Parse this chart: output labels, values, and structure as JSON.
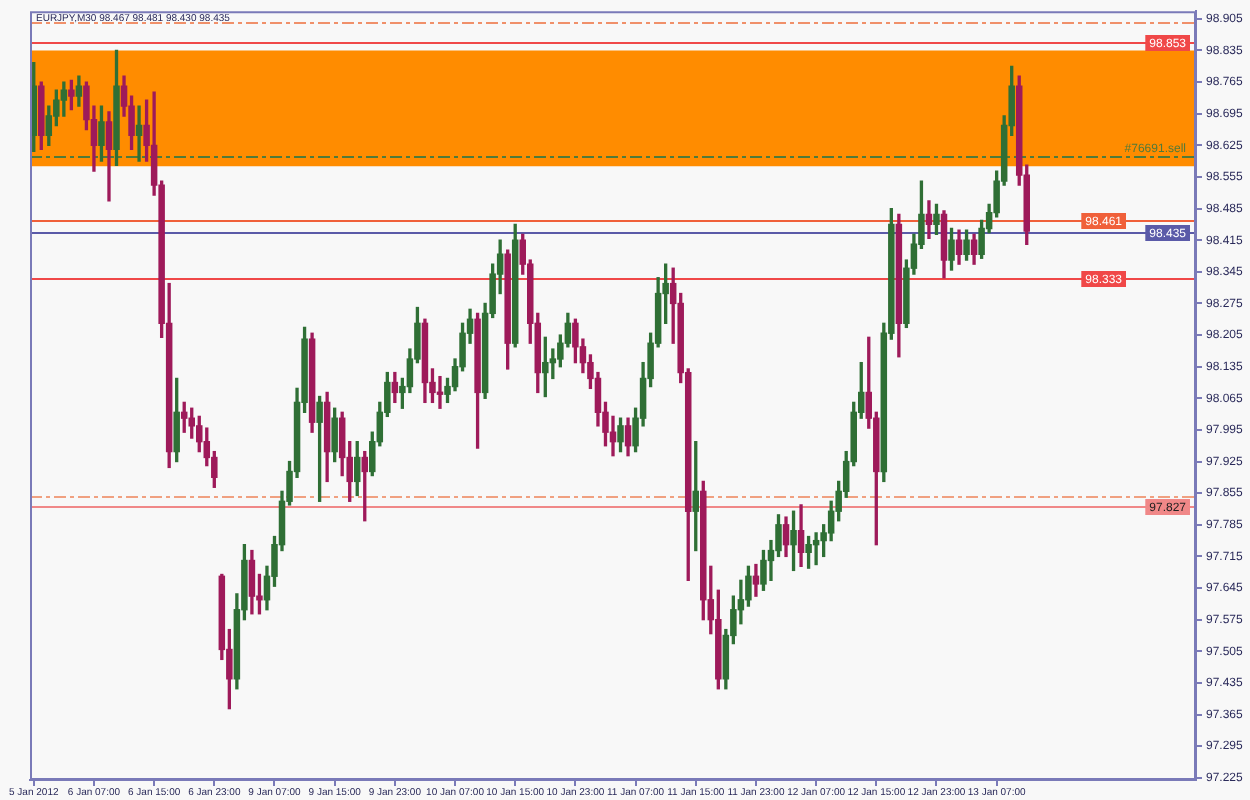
{
  "chart_data": {
    "type": "candlestick",
    "title": "EURJPY,M30 98.467 98.481 98.430 98.435",
    "categories": [
      "5 Jan 2012",
      null,
      null,
      null,
      null,
      null,
      null,
      null,
      "6 Jan 07:00",
      null,
      null,
      null,
      null,
      null,
      null,
      null,
      "6 Jan 15:00",
      null,
      null,
      null,
      null,
      null,
      null,
      null,
      "6 Jan 23:00",
      null,
      null,
      null,
      null,
      null,
      null,
      null,
      "9 Jan 07:00",
      null,
      null,
      null,
      null,
      null,
      null,
      null,
      "9 Jan 15:00",
      null,
      null,
      null,
      null,
      null,
      null,
      null,
      "9 Jan 23:00",
      null,
      null,
      null,
      null,
      null,
      null,
      null,
      "10 Jan 07:00",
      null,
      null,
      null,
      null,
      null,
      null,
      null,
      "10 Jan 15:00",
      null,
      null,
      null,
      null,
      null,
      null,
      null,
      "10 Jan 23:00",
      null,
      null,
      null,
      null,
      null,
      null,
      null,
      "11 Jan 07:00",
      null,
      null,
      null,
      null,
      null,
      null,
      null,
      "11 Jan 15:00",
      null,
      null,
      null,
      null,
      null,
      null,
      null,
      "11 Jan 23:00",
      null,
      null,
      null,
      null,
      null,
      null,
      null,
      "12 Jan 07:00",
      null,
      null,
      null,
      null,
      null,
      null,
      null,
      "12 Jan 15:00",
      null,
      null,
      null,
      null,
      null,
      null,
      null,
      "12 Jan 23:00",
      null,
      null,
      null,
      null,
      null,
      null,
      null,
      "13 Jan 07:00",
      null,
      null,
      null,
      null,
      null,
      null,
      null,
      null,
      null,
      null,
      null,
      null,
      null,
      null,
      null,
      null,
      null,
      null,
      null,
      null,
      null,
      null,
      null,
      null,
      null,
      null
    ],
    "ohlc": [
      [
        98.647,
        98.808,
        98.612,
        98.756
      ],
      [
        98.756,
        98.765,
        98.616,
        98.647
      ],
      [
        98.647,
        98.712,
        98.625,
        98.69
      ],
      [
        98.69,
        98.747,
        98.669,
        98.725
      ],
      [
        98.725,
        98.765,
        98.69,
        98.747
      ],
      [
        98.747,
        98.769,
        98.704,
        98.734
      ],
      [
        98.734,
        98.778,
        98.712,
        98.756
      ],
      [
        98.756,
        98.765,
        98.66,
        98.682
      ],
      [
        98.682,
        98.712,
        98.568,
        98.625
      ],
      [
        98.625,
        98.712,
        98.59,
        98.677
      ],
      [
        98.677,
        98.699,
        98.502,
        98.616
      ],
      [
        98.616,
        98.835,
        98.581,
        98.756
      ],
      [
        98.756,
        98.778,
        98.69,
        98.712
      ],
      [
        98.712,
        98.734,
        98.616,
        98.647
      ],
      [
        98.647,
        98.712,
        98.59,
        98.669
      ],
      [
        98.669,
        98.725,
        98.59,
        98.625
      ],
      [
        98.625,
        98.743,
        98.515,
        98.537
      ],
      [
        98.537,
        98.546,
        98.2,
        98.231
      ],
      [
        98.231,
        98.319,
        97.912,
        97.947
      ],
      [
        97.947,
        98.109,
        97.925,
        98.034
      ],
      [
        98.034,
        98.056,
        97.99,
        98.021
      ],
      [
        98.021,
        98.043,
        97.977,
        98.004
      ],
      [
        98.004,
        98.025,
        97.947,
        97.969
      ],
      [
        97.969,
        97.999,
        97.916,
        97.934
      ],
      [
        97.934,
        97.947,
        97.868,
        97.89
      ],
      [
        97.671,
        97.675,
        97.487,
        97.509
      ],
      [
        97.509,
        97.553,
        97.378,
        97.444
      ],
      [
        97.444,
        97.632,
        97.422,
        97.597
      ],
      [
        97.597,
        97.741,
        97.575,
        97.706
      ],
      [
        97.706,
        97.728,
        97.588,
        97.627
      ],
      [
        97.627,
        97.675,
        97.588,
        97.619
      ],
      [
        97.619,
        97.693,
        97.597,
        97.671
      ],
      [
        97.671,
        97.759,
        97.649,
        97.741
      ],
      [
        97.741,
        97.859,
        97.728,
        97.837
      ],
      [
        97.837,
        97.925,
        97.829,
        97.903
      ],
      [
        97.903,
        98.087,
        97.89,
        98.056
      ],
      [
        98.056,
        98.222,
        98.034,
        98.196
      ],
      [
        98.196,
        98.209,
        97.99,
        98.012
      ],
      [
        98.012,
        98.069,
        97.837,
        98.056
      ],
      [
        98.056,
        98.078,
        97.881,
        97.947
      ],
      [
        97.947,
        98.043,
        97.925,
        98.021
      ],
      [
        98.021,
        98.034,
        97.894,
        97.934
      ],
      [
        97.934,
        97.969,
        97.837,
        97.881
      ],
      [
        97.881,
        97.969,
        97.85,
        97.934
      ],
      [
        97.934,
        97.947,
        97.794,
        97.903
      ],
      [
        97.903,
        97.99,
        97.894,
        97.969
      ],
      [
        97.969,
        98.056,
        97.96,
        98.034
      ],
      [
        98.034,
        98.122,
        98.025,
        98.1
      ],
      [
        98.1,
        98.122,
        98.056,
        98.078
      ],
      [
        98.078,
        98.109,
        98.043,
        98.091
      ],
      [
        98.091,
        98.174,
        98.078,
        98.152
      ],
      [
        98.152,
        98.266,
        98.144,
        98.231
      ],
      [
        98.231,
        98.24,
        98.056,
        98.1
      ],
      [
        98.1,
        98.13,
        98.056,
        98.078
      ],
      [
        98.078,
        98.113,
        98.043,
        98.074
      ],
      [
        98.074,
        98.109,
        98.056,
        98.091
      ],
      [
        98.091,
        98.152,
        98.082,
        98.135
      ],
      [
        98.135,
        98.231,
        98.126,
        98.209
      ],
      [
        98.209,
        98.262,
        98.187,
        98.24
      ],
      [
        98.24,
        98.253,
        97.955,
        98.078
      ],
      [
        98.078,
        98.275,
        98.065,
        98.253
      ],
      [
        98.253,
        98.362,
        98.244,
        98.34
      ],
      [
        98.34,
        98.415,
        98.297,
        98.384
      ],
      [
        98.384,
        98.393,
        98.13,
        98.187
      ],
      [
        98.187,
        98.45,
        98.179,
        98.415
      ],
      [
        98.415,
        98.428,
        98.34,
        98.362
      ],
      [
        98.362,
        98.371,
        98.187,
        98.231
      ],
      [
        98.231,
        98.253,
        98.078,
        98.122
      ],
      [
        98.122,
        98.2,
        98.069,
        98.144
      ],
      [
        98.144,
        98.174,
        98.109,
        98.152
      ],
      [
        98.152,
        98.205,
        98.135,
        98.187
      ],
      [
        98.187,
        98.253,
        98.179,
        98.231
      ],
      [
        98.231,
        98.24,
        98.144,
        98.179
      ],
      [
        98.179,
        98.196,
        98.122,
        98.144
      ],
      [
        98.144,
        98.161,
        98.087,
        98.109
      ],
      [
        98.109,
        98.122,
        98.004,
        98.034
      ],
      [
        98.034,
        98.056,
        97.96,
        97.99
      ],
      [
        97.99,
        98.025,
        97.938,
        97.969
      ],
      [
        97.969,
        98.021,
        97.947,
        98.004
      ],
      [
        98.004,
        98.021,
        97.938,
        97.96
      ],
      [
        97.96,
        98.043,
        97.947,
        98.021
      ],
      [
        98.021,
        98.144,
        98.004,
        98.109
      ],
      [
        98.109,
        98.209,
        98.091,
        98.187
      ],
      [
        98.187,
        98.332,
        98.179,
        98.297
      ],
      [
        98.297,
        98.362,
        98.231,
        98.319
      ],
      [
        98.319,
        98.353,
        98.187,
        98.275
      ],
      [
        98.275,
        98.297,
        98.1,
        98.122
      ],
      [
        98.122,
        98.13,
        97.662,
        97.815
      ],
      [
        97.815,
        97.969,
        97.728,
        97.859
      ],
      [
        97.859,
        97.881,
        97.575,
        97.619
      ],
      [
        97.619,
        97.693,
        97.544,
        97.575
      ],
      [
        97.575,
        97.64,
        97.422,
        97.444
      ],
      [
        97.444,
        97.553,
        97.422,
        97.54
      ],
      [
        97.54,
        97.627,
        97.522,
        97.597
      ],
      [
        97.597,
        97.662,
        97.566,
        97.619
      ],
      [
        97.619,
        97.693,
        97.605,
        97.671
      ],
      [
        97.671,
        97.697,
        97.627,
        97.654
      ],
      [
        97.654,
        97.728,
        97.64,
        97.706
      ],
      [
        97.706,
        97.75,
        97.662,
        97.728
      ],
      [
        97.728,
        97.807,
        97.715,
        97.785
      ],
      [
        97.785,
        97.802,
        97.715,
        97.741
      ],
      [
        97.741,
        97.815,
        97.684,
        97.772
      ],
      [
        97.772,
        97.829,
        97.693,
        97.724
      ],
      [
        97.724,
        97.759,
        97.689,
        97.741
      ],
      [
        97.741,
        97.767,
        97.697,
        97.75
      ],
      [
        97.75,
        97.785,
        97.715,
        97.767
      ],
      [
        97.767,
        97.837,
        97.75,
        97.815
      ],
      [
        97.815,
        97.881,
        97.794,
        97.859
      ],
      [
        97.859,
        97.947,
        97.846,
        97.925
      ],
      [
        97.925,
        98.056,
        97.916,
        98.034
      ],
      [
        98.034,
        98.144,
        98.021,
        98.078
      ],
      [
        98.078,
        98.2,
        97.999,
        98.021
      ],
      [
        98.021,
        98.034,
        97.741,
        97.903
      ],
      [
        97.903,
        98.231,
        97.881,
        98.209
      ],
      [
        98.209,
        98.485,
        98.196,
        98.45
      ],
      [
        98.45,
        98.472,
        98.157,
        98.231
      ],
      [
        98.231,
        98.371,
        98.222,
        98.353
      ],
      [
        98.353,
        98.428,
        98.34,
        98.406
      ],
      [
        98.406,
        98.546,
        98.397,
        98.472
      ],
      [
        98.472,
        98.502,
        98.419,
        98.45
      ],
      [
        98.45,
        98.494,
        98.428,
        98.472
      ],
      [
        98.472,
        98.48,
        98.332,
        98.371
      ],
      [
        98.371,
        98.441,
        98.349,
        98.415
      ],
      [
        98.415,
        98.437,
        98.362,
        98.384
      ],
      [
        98.384,
        98.437,
        98.371,
        98.415
      ],
      [
        98.415,
        98.428,
        98.362,
        98.384
      ],
      [
        98.384,
        98.459,
        98.375,
        98.441
      ],
      [
        98.441,
        98.494,
        98.432,
        98.476
      ],
      [
        98.476,
        98.568,
        98.467,
        98.546
      ],
      [
        98.546,
        98.69,
        98.537,
        98.669
      ],
      [
        98.669,
        98.8,
        98.647,
        98.756
      ],
      [
        98.756,
        98.778,
        98.537,
        98.559
      ],
      [
        98.559,
        98.581,
        98.406,
        98.435
      ],
      null,
      null,
      null,
      null,
      null,
      null,
      null,
      null,
      null,
      null,
      null,
      null,
      null,
      null,
      null,
      null,
      null,
      null,
      null,
      null,
      null,
      null
    ],
    "colors": [
      "#2f6f35",
      "#9e1a5a",
      "#2f6f35",
      "#2f6f35",
      "#2f6f35",
      "#9e1a5a",
      "#2f6f35",
      "#9e1a5a",
      "#9e1a5a",
      "#2f6f35",
      "#9e1a5a",
      "#2f6f35",
      "#9e1a5a",
      "#9e1a5a",
      "#2f6f35",
      "#9e1a5a",
      "#9e1a5a",
      "#9e1a5a",
      "#9e1a5a",
      "#2f6f35",
      "#9e1a5a",
      "#9e1a5a",
      "#9e1a5a",
      "#9e1a5a",
      "#9e1a5a",
      "#9e1a5a",
      "#9e1a5a",
      "#2f6f35",
      "#2f6f35",
      "#9e1a5a",
      "#9e1a5a",
      "#2f6f35",
      "#2f6f35",
      "#2f6f35",
      "#2f6f35",
      "#2f6f35",
      "#2f6f35",
      "#9e1a5a",
      "#2f6f35",
      "#9e1a5a",
      "#2f6f35",
      "#9e1a5a",
      "#9e1a5a",
      "#2f6f35",
      "#9e1a5a",
      "#2f6f35",
      "#2f6f35",
      "#2f6f35",
      "#9e1a5a",
      "#2f6f35",
      "#2f6f35",
      "#2f6f35",
      "#9e1a5a",
      "#9e1a5a",
      "#9e1a5a",
      "#2f6f35",
      "#2f6f35",
      "#2f6f35",
      "#2f6f35",
      "#9e1a5a",
      "#2f6f35",
      "#2f6f35",
      "#2f6f35",
      "#9e1a5a",
      "#2f6f35",
      "#9e1a5a",
      "#9e1a5a",
      "#9e1a5a",
      "#2f6f35",
      "#2f6f35",
      "#2f6f35",
      "#2f6f35",
      "#9e1a5a",
      "#9e1a5a",
      "#9e1a5a",
      "#9e1a5a",
      "#9e1a5a",
      "#9e1a5a",
      "#2f6f35",
      "#9e1a5a",
      "#2f6f35",
      "#2f6f35",
      "#2f6f35",
      "#2f6f35",
      "#2f6f35",
      "#9e1a5a",
      "#9e1a5a",
      "#9e1a5a",
      "#2f6f35",
      "#9e1a5a",
      "#9e1a5a",
      "#9e1a5a",
      "#2f6f35",
      "#2f6f35",
      "#2f6f35",
      "#2f6f35",
      "#9e1a5a",
      "#2f6f35",
      "#2f6f35",
      "#2f6f35",
      "#9e1a5a",
      "#2f6f35",
      "#9e1a5a",
      "#2f6f35",
      "#2f6f35",
      "#2f6f35",
      "#2f6f35",
      "#2f6f35",
      "#2f6f35",
      "#2f6f35",
      "#2f6f35",
      "#9e1a5a",
      "#9e1a5a",
      "#2f6f35",
      "#2f6f35",
      "#9e1a5a",
      "#2f6f35",
      "#2f6f35",
      "#2f6f35",
      "#9e1a5a",
      "#2f6f35",
      "#9e1a5a",
      "#2f6f35",
      "#9e1a5a",
      "#2f6f35",
      "#9e1a5a",
      "#2f6f35",
      "#2f6f35",
      "#2f6f35",
      "#2f6f35",
      "#2f6f35",
      "#9e1a5a",
      "#9e1a5a",
      null,
      null,
      null,
      null,
      null,
      null,
      null,
      null,
      null,
      null,
      null,
      null,
      null,
      null,
      null,
      null,
      null,
      null,
      null,
      null,
      null,
      null
    ],
    "ylim": [
      97.22,
      98.922
    ],
    "yticks": [
      97.225,
      97.295,
      97.365,
      97.435,
      97.505,
      97.575,
      97.645,
      97.715,
      97.785,
      97.855,
      97.925,
      97.995,
      98.065,
      98.135,
      98.205,
      98.275,
      98.345,
      98.415,
      98.485,
      98.555,
      98.625,
      98.695,
      98.765,
      98.835,
      98.905
    ],
    "bands": [
      {
        "axis": "y",
        "from": 98.579,
        "to": 98.835,
        "color": "#ff8c00"
      }
    ],
    "ref_lines": [
      {
        "axis": "y",
        "value": 98.896,
        "color": "#f0906a",
        "line_style": "dashed"
      },
      {
        "axis": "y",
        "value": 98.853,
        "label": "98.853",
        "color": "#f04848"
      },
      {
        "axis": "y",
        "value": 98.603,
        "label": "#76691.sell",
        "color": "#4f7a3a",
        "line_style": "dashed"
      },
      {
        "axis": "y",
        "value": 98.461,
        "label": "98.461",
        "color": "#f0603a"
      },
      {
        "axis": "y",
        "value": 98.435,
        "label": "98.435",
        "color": "#5a5aa8"
      },
      {
        "axis": "y",
        "value": 98.333,
        "label": "98.333",
        "color": "#f04848"
      },
      {
        "axis": "y",
        "value": 97.848,
        "color": "#f0a080",
        "line_style": "dashed"
      },
      {
        "axis": "y",
        "value": 97.827,
        "label": "97.827",
        "color": "#f08888"
      }
    ]
  }
}
